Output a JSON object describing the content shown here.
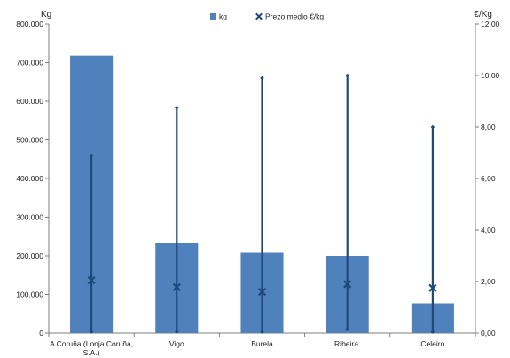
{
  "chart_data": {
    "type": "bar",
    "categories": [
      [
        "A Coruña (Lonja Coruña,",
        "S.A.)"
      ],
      [
        "Vigo"
      ],
      [
        "Burela"
      ],
      [
        "Ribeira."
      ],
      [
        "Celeiro"
      ]
    ],
    "y_left": {
      "label": "Kg",
      "ticks": [
        "0",
        "100.000",
        "200.000",
        "300.000",
        "400.000",
        "500.000",
        "600.000",
        "700.000",
        "800.000"
      ],
      "lim": [
        0,
        800000
      ]
    },
    "y_right": {
      "label": "€/Kg",
      "ticks": [
        "0,00",
        "2,00",
        "4,00",
        "6,00",
        "8,00",
        "10,00",
        "12,00"
      ],
      "lim": [
        0,
        12
      ]
    },
    "series": [
      {
        "name": "kg",
        "kind": "bar",
        "axis": "left",
        "color": "#4f81bd",
        "values": [
          718000,
          233000,
          208000,
          200000,
          77000
        ]
      },
      {
        "name": "Prezo medio €/kg",
        "kind": "marker",
        "axis": "right",
        "color": "#1f497d",
        "values": [
          2.05,
          1.78,
          1.6,
          1.9,
          1.75
        ],
        "high": [
          6.9,
          8.75,
          9.9,
          10.0,
          8.0
        ],
        "low": [
          0.05,
          0.05,
          0.05,
          0.15,
          0.05
        ]
      }
    ],
    "legend": {
      "position": "top-center"
    },
    "grid": false
  }
}
